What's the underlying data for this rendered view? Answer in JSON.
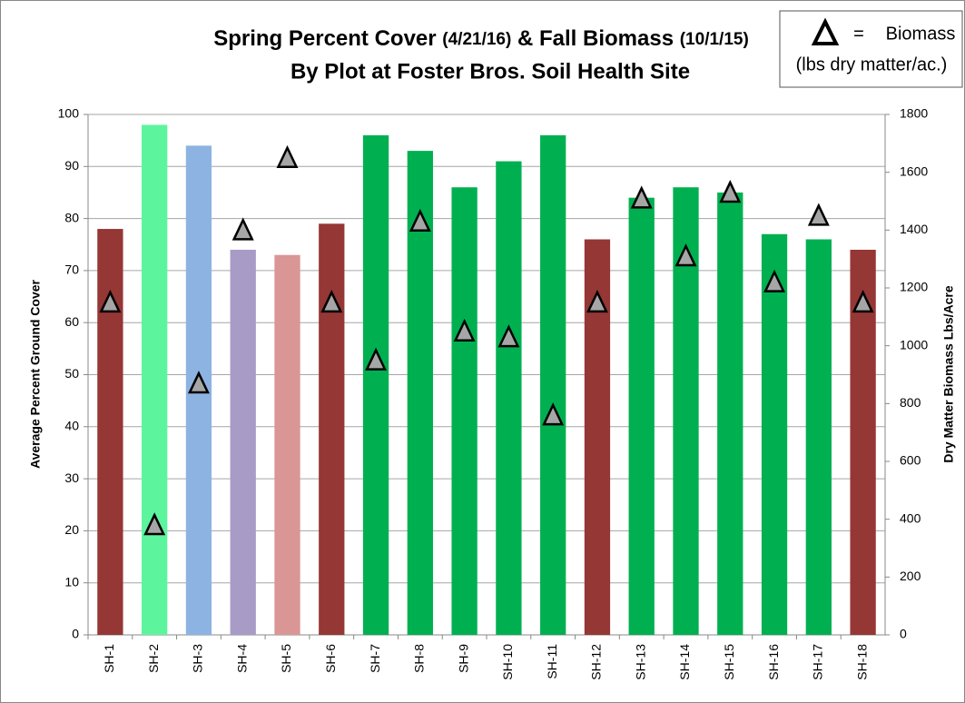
{
  "chart_data": {
    "type": "bar",
    "title_parts": [
      "Spring Percent Cover",
      "(4/21/16)",
      "& Fall Biomass",
      "(10/1/15)"
    ],
    "title_line2": "By Plot at Foster Bros. Soil Health Site",
    "ylabel": "Average Percent Ground Cover",
    "y2label": "Dry Matter Biomass Lbs/Acre",
    "legend_separator": "=",
    "legend_note": "(lbs dry matter/ac.)",
    "categories": [
      "SH-1",
      "SH-2",
      "SH-3",
      "SH-4",
      "SH-5",
      "SH-6",
      "SH-7",
      "SH-8",
      "SH-9",
      "SH-10",
      "SH-11",
      "SH-12",
      "SH-13",
      "SH-14",
      "SH-15",
      "SH-16",
      "SH-17",
      "SH-18"
    ],
    "series": [
      {
        "type": "bar",
        "values": [
          78,
          98,
          94,
          74,
          73,
          79,
          96,
          93,
          86,
          91,
          96,
          76,
          84,
          86,
          85,
          77,
          76,
          74
        ],
        "colors": [
          "#953735",
          "#5cf59e",
          "#8db3e2",
          "#a89bc5",
          "#d99694",
          "#953735",
          "#00b050",
          "#00b050",
          "#00b050",
          "#00b050",
          "#00b050",
          "#953735",
          "#00b050",
          "#00b050",
          "#00b050",
          "#00b050",
          "#00b050",
          "#953735"
        ]
      },
      {
        "type": "triangle",
        "name": "Biomass",
        "axis": "y2",
        "color": "#a6a6a6",
        "values": [
          1150,
          380,
          870,
          1400,
          1650,
          1150,
          950,
          1430,
          1050,
          1030,
          760,
          1150,
          1510,
          1310,
          1530,
          1220,
          1450,
          1150
        ]
      }
    ],
    "ylim": [
      0,
      100
    ],
    "yticks": [
      0,
      10,
      20,
      30,
      40,
      50,
      60,
      70,
      80,
      90,
      100
    ],
    "y2lim": [
      0,
      1800
    ],
    "y2ticks": [
      0,
      200,
      400,
      600,
      800,
      1000,
      1200,
      1400,
      1600,
      1800
    ],
    "grid": true
  }
}
